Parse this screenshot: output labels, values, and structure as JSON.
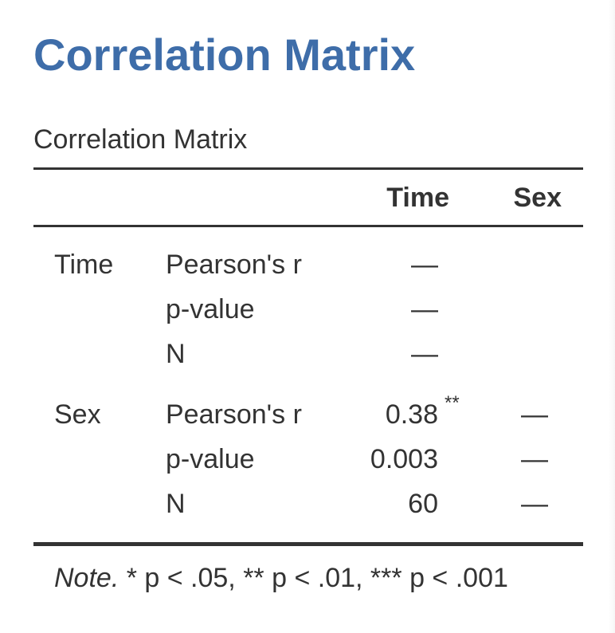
{
  "page": {
    "title": "Correlation Matrix"
  },
  "table": {
    "caption": "Correlation Matrix",
    "columns": [
      "Time",
      "Sex"
    ],
    "rows": [
      {
        "variable": "Time",
        "stats": [
          {
            "label": "Pearson's r",
            "time": "—",
            "sex": ""
          },
          {
            "label": "p-value",
            "time": "—",
            "sex": ""
          },
          {
            "label": "N",
            "time": "—",
            "sex": ""
          }
        ]
      },
      {
        "variable": "Sex",
        "stats": [
          {
            "label": "Pearson's r",
            "time": "0.38",
            "time_sig": "**",
            "sex": "—"
          },
          {
            "label": "p-value",
            "time": "0.003",
            "sex": "—"
          },
          {
            "label": "N",
            "time": "60",
            "sex": "—"
          }
        ]
      }
    ],
    "note_label": "Note.",
    "note_text": " * p < .05, ** p < .01, *** p < .001"
  },
  "colors": {
    "title": "#3e6da9",
    "text": "#333333",
    "rule": "#333333"
  }
}
